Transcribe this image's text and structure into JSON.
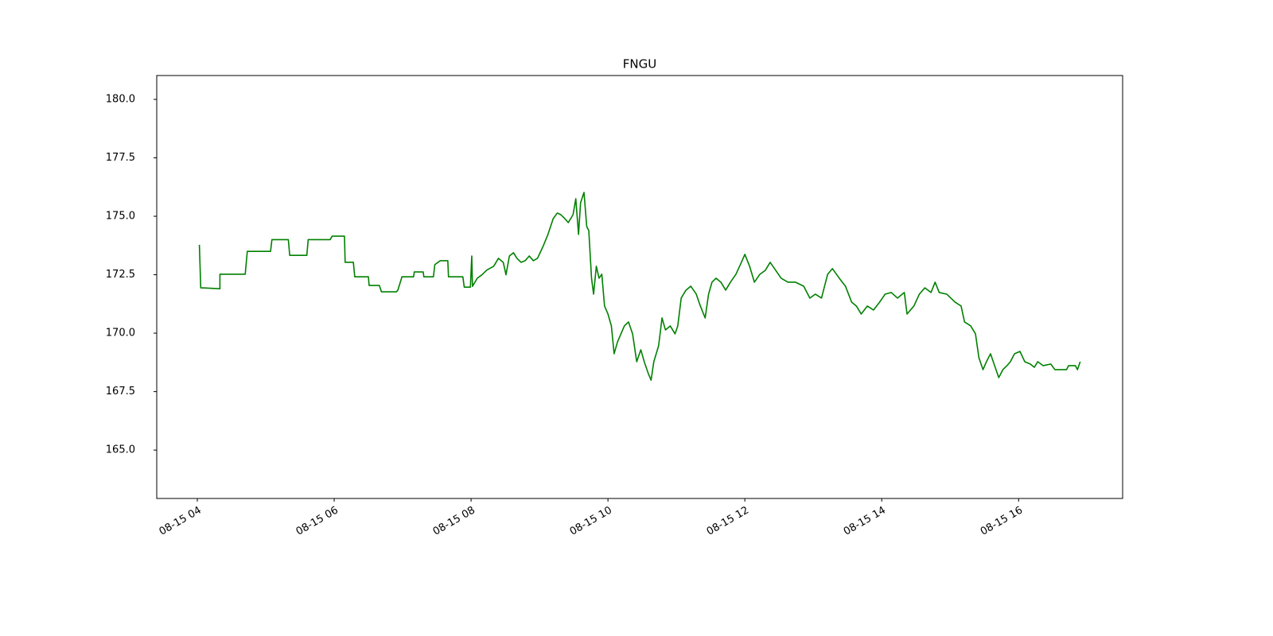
{
  "chart_data": {
    "type": "line",
    "title": "FNGU",
    "color": "#008000",
    "grid": false,
    "xlim": [
      3.407,
      17.52
    ],
    "ylim": [
      162.93,
      181.02
    ],
    "xticks": [
      {
        "value": 4,
        "label": "08-15 04"
      },
      {
        "value": 6,
        "label": "08-15 06"
      },
      {
        "value": 8,
        "label": "08-15 08"
      },
      {
        "value": 10,
        "label": "08-15 10"
      },
      {
        "value": 12,
        "label": "08-15 12"
      },
      {
        "value": 14,
        "label": "08-15 14"
      },
      {
        "value": 16,
        "label": "08-15 16"
      }
    ],
    "yticks": [
      {
        "value": 165,
        "label": "165.0"
      },
      167.5,
      {
        "value": 170,
        "label": "170.0"
      },
      172.5,
      {
        "value": 175,
        "label": "175.0"
      },
      177.5,
      {
        "value": 180,
        "label": "180.0"
      }
    ],
    "x": [
      4.03,
      4.05,
      4.33,
      4.33,
      4.7,
      4.73,
      5.07,
      5.09,
      5.33,
      5.35,
      5.6,
      5.62,
      5.94,
      5.97,
      6.15,
      6.16,
      6.28,
      6.3,
      6.5,
      6.51,
      6.66,
      6.69,
      6.91,
      6.93,
      6.99,
      7.16,
      7.17,
      7.3,
      7.31,
      7.45,
      7.47,
      7.55,
      7.66,
      7.67,
      7.88,
      7.9,
      7.99,
      8.01,
      8.02,
      8.09,
      8.16,
      8.23,
      8.33,
      8.4,
      8.47,
      8.51,
      8.56,
      8.62,
      8.67,
      8.73,
      8.79,
      8.85,
      8.91,
      8.97,
      9.05,
      9.12,
      9.2,
      9.26,
      9.31,
      9.37,
      9.42,
      9.49,
      9.53,
      9.57,
      9.6,
      9.65,
      9.69,
      9.72,
      9.76,
      9.79,
      9.83,
      9.87,
      9.91,
      9.95,
      10.0,
      10.05,
      10.09,
      10.14,
      10.19,
      10.24,
      10.3,
      10.36,
      10.42,
      10.48,
      10.53,
      10.59,
      10.63,
      10.67,
      10.74,
      10.79,
      10.84,
      10.91,
      10.98,
      11.02,
      11.07,
      11.14,
      11.21,
      11.29,
      11.35,
      11.42,
      11.47,
      11.52,
      11.58,
      11.65,
      11.72,
      11.79,
      11.87,
      11.95,
      12.0,
      12.07,
      12.14,
      12.22,
      12.3,
      12.37,
      12.45,
      12.53,
      12.63,
      12.74,
      12.86,
      12.95,
      13.03,
      13.12,
      13.21,
      13.28,
      13.38,
      13.47,
      13.56,
      13.63,
      13.7,
      13.79,
      13.88,
      13.97,
      14.05,
      14.14,
      14.23,
      14.33,
      14.37,
      14.47,
      14.55,
      14.63,
      14.72,
      14.78,
      14.84,
      14.95,
      15.07,
      15.16,
      15.21,
      15.3,
      15.37,
      15.42,
      15.48,
      15.53,
      15.59,
      15.65,
      15.71,
      15.77,
      15.83,
      15.88,
      15.94,
      16.02,
      16.09,
      16.17,
      16.23,
      16.28,
      16.36,
      16.47,
      16.53,
      16.7,
      16.73,
      16.83,
      16.86,
      16.9
    ],
    "values": [
      173.78,
      171.94,
      171.9,
      172.52,
      172.52,
      173.5,
      173.5,
      174.0,
      174.0,
      173.33,
      173.33,
      174.0,
      174.0,
      174.15,
      174.15,
      173.03,
      173.03,
      172.41,
      172.41,
      172.04,
      172.04,
      171.77,
      171.77,
      171.84,
      172.41,
      172.41,
      172.62,
      172.62,
      172.41,
      172.41,
      172.93,
      173.1,
      173.1,
      172.41,
      172.41,
      171.97,
      171.97,
      173.3,
      172.0,
      172.35,
      172.5,
      172.7,
      172.86,
      173.2,
      173.03,
      172.5,
      173.3,
      173.44,
      173.2,
      173.03,
      173.1,
      173.3,
      173.1,
      173.2,
      173.7,
      174.2,
      174.9,
      175.14,
      175.07,
      174.9,
      174.73,
      175.07,
      175.75,
      174.22,
      175.58,
      176.02,
      174.56,
      174.39,
      172.35,
      171.67,
      172.86,
      172.35,
      172.52,
      171.16,
      170.82,
      170.31,
      169.12,
      169.63,
      169.97,
      170.31,
      170.48,
      169.97,
      168.78,
      169.29,
      168.78,
      168.27,
      167.99,
      168.78,
      169.46,
      170.65,
      170.14,
      170.31,
      169.97,
      170.31,
      171.5,
      171.84,
      172.01,
      171.67,
      171.16,
      170.65,
      171.67,
      172.18,
      172.35,
      172.18,
      171.84,
      172.18,
      172.52,
      173.03,
      173.37,
      172.86,
      172.18,
      172.52,
      172.69,
      173.03,
      172.69,
      172.35,
      172.18,
      172.18,
      172.01,
      171.5,
      171.67,
      171.5,
      172.52,
      172.76,
      172.35,
      172.01,
      171.33,
      171.16,
      170.82,
      171.16,
      170.99,
      171.33,
      171.67,
      171.74,
      171.5,
      171.74,
      170.82,
      171.16,
      171.67,
      171.94,
      171.74,
      172.18,
      171.74,
      171.67,
      171.33,
      171.16,
      170.48,
      170.31,
      169.97,
      168.95,
      168.44,
      168.78,
      169.12,
      168.61,
      168.1,
      168.44,
      168.61,
      168.78,
      169.12,
      169.22,
      168.78,
      168.68,
      168.54,
      168.78,
      168.61,
      168.68,
      168.44,
      168.44,
      168.61,
      168.61,
      168.44,
      168.78
    ]
  }
}
